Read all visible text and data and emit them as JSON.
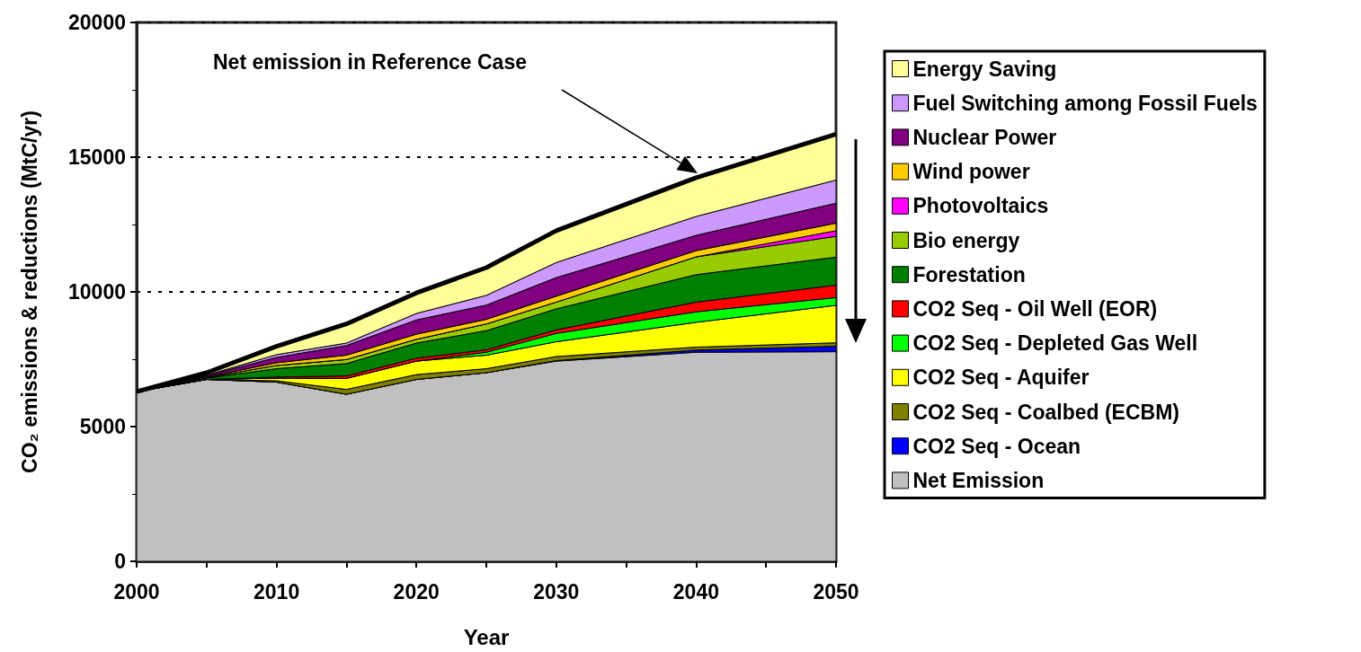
{
  "chart_data": {
    "type": "area",
    "stacked": true,
    "xlabel": "Year",
    "ylabel": "CO₂ emissions & reductions (MtC/yr)",
    "x": [
      2000,
      2005,
      2010,
      2015,
      2020,
      2025,
      2030,
      2040,
      2050
    ],
    "xlim": [
      2000,
      2050
    ],
    "xticks": [
      2000,
      2010,
      2020,
      2030,
      2040,
      2050
    ],
    "ylim": [
      0,
      20000
    ],
    "yticks": [
      0,
      5000,
      10000,
      15000,
      20000
    ],
    "grid": "y",
    "legend": "right",
    "annotations": [
      "Net emission in Reference Case"
    ],
    "series": [
      {
        "name": "Net Emission",
        "color": "#c0c0c0",
        "values": [
          6300,
          6750,
          6650,
          6200,
          6750,
          7000,
          7430,
          7760,
          7780
        ]
      },
      {
        "name": "CO2 Seq - Ocean",
        "color": "#0000ff",
        "values": [
          0,
          0,
          0,
          0,
          0,
          0,
          20,
          80,
          200
        ]
      },
      {
        "name": "CO2 Seq - Coalbed (ECBM)",
        "color": "#808000",
        "values": [
          0,
          0,
          50,
          180,
          180,
          150,
          150,
          110,
          130
        ]
      },
      {
        "name": "CO2 Seq - Aquifer",
        "color": "#ffff00",
        "values": [
          0,
          0,
          100,
          410,
          500,
          500,
          550,
          920,
          1390
        ]
      },
      {
        "name": "CO2 Seq - Depleted Gas Well",
        "color": "#00ff00",
        "values": [
          0,
          0,
          0,
          0,
          0,
          110,
          310,
          390,
          290
        ]
      },
      {
        "name": "CO2 Seq - Oil Well (EOR)",
        "color": "#ff0000",
        "values": [
          0,
          0,
          40,
          90,
          110,
          90,
          130,
          360,
          460
        ]
      },
      {
        "name": "Forestation",
        "color": "#008000",
        "values": [
          0,
          50,
          310,
          460,
          560,
          710,
          780,
          1020,
          1040
        ]
      },
      {
        "name": "Bio energy",
        "color": "#99cc00",
        "values": [
          0,
          20,
          120,
          150,
          140,
          250,
          250,
          660,
          770
        ]
      },
      {
        "name": "Photovoltaics",
        "color": "#ff00ff",
        "values": [
          0,
          0,
          0,
          0,
          0,
          0,
          0,
          0,
          210
        ]
      },
      {
        "name": "Wind power",
        "color": "#ffcc00",
        "values": [
          0,
          20,
          100,
          160,
          190,
          170,
          220,
          230,
          280
        ]
      },
      {
        "name": "Nuclear Power",
        "color": "#800080",
        "values": [
          0,
          50,
          200,
          360,
          530,
          530,
          690,
          570,
          740
        ]
      },
      {
        "name": "Fuel Switching among Fossil Fuels",
        "color": "#cc99ff",
        "values": [
          0,
          20,
          100,
          90,
          240,
          360,
          560,
          700,
          860
        ]
      },
      {
        "name": "Energy Saving",
        "color": "#ffff99",
        "values": [
          0,
          90,
          310,
          710,
          760,
          1030,
          1180,
          1440,
          1700
        ]
      }
    ]
  }
}
